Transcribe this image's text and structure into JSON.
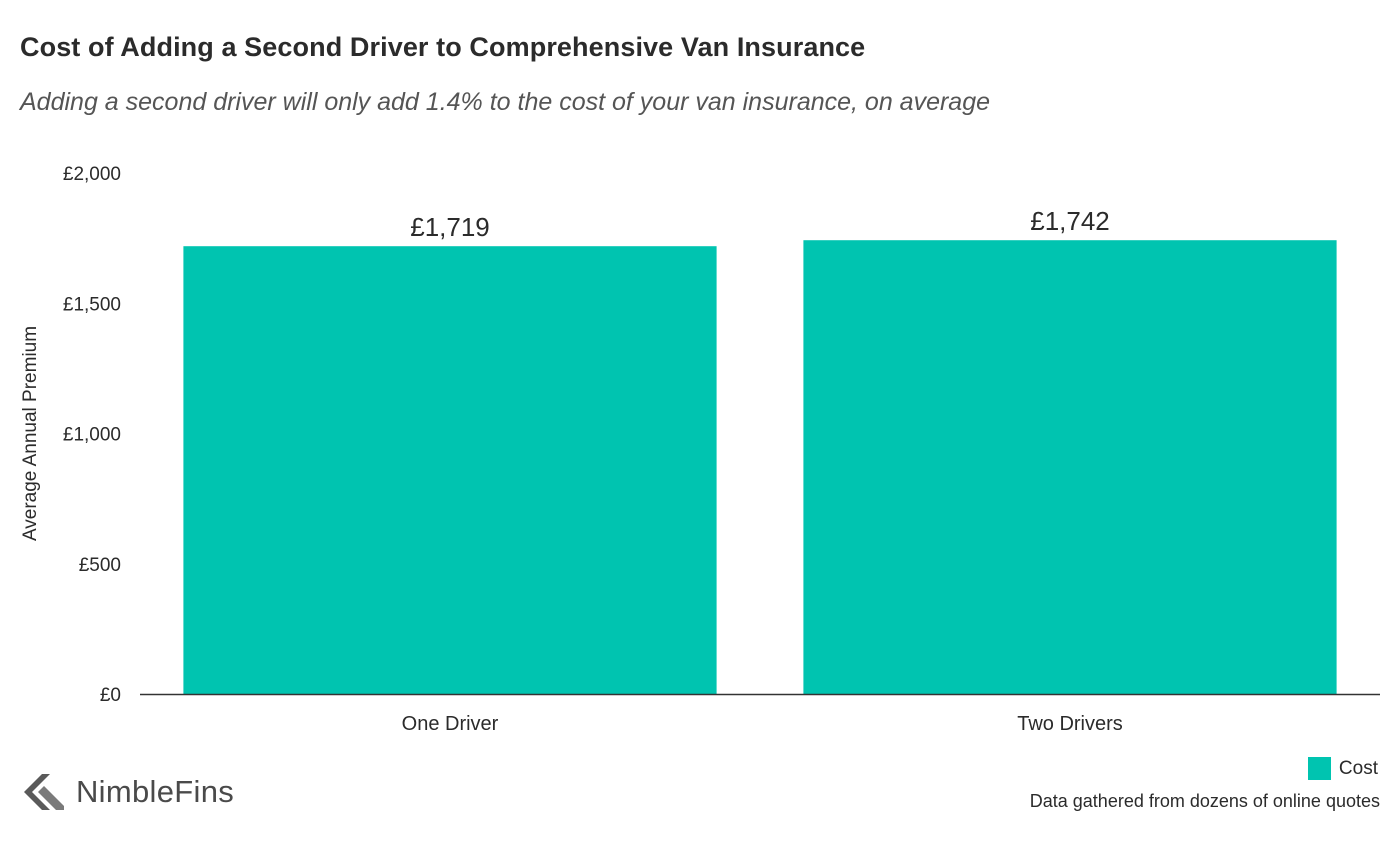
{
  "header": {
    "title": "Cost of Adding a Second Driver to Comprehensive Van Insurance",
    "subtitle": "Adding a second driver will only add 1.4% to the cost of your van insurance, on average"
  },
  "chart_data": {
    "type": "bar",
    "title": "Cost of Adding a Second Driver to Comprehensive Van Insurance",
    "subtitle": "Adding a second driver will only add 1.4% to the cost of your van insurance, on average",
    "categories": [
      "One Driver",
      "Two Drivers"
    ],
    "series": [
      {
        "name": "Cost",
        "values": [
          1719,
          1742
        ],
        "color": "#00c4b0"
      }
    ],
    "data_labels": [
      "£1,719",
      "£1,742"
    ],
    "ylabel": "Average Annual Premium",
    "xlabel": "",
    "ylim": [
      0,
      2000
    ],
    "yticks": [
      0,
      500,
      1000,
      1500,
      2000
    ],
    "ytick_labels": [
      "£0",
      "£500",
      "£1,000",
      "£1,500",
      "£2,000"
    ],
    "grid": false,
    "legend_position": "bottom-right"
  },
  "legend": {
    "label": "Cost"
  },
  "footer": {
    "source": "Data gathered from dozens of online quotes",
    "logo_text": "NimbleFins"
  }
}
